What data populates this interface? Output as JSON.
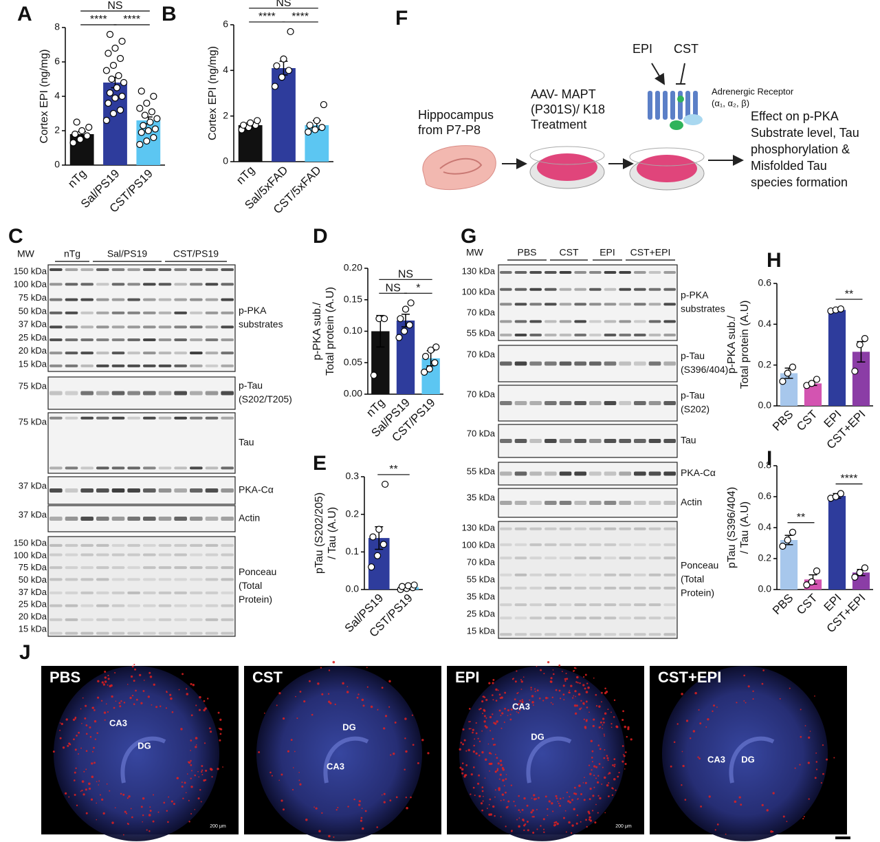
{
  "panel_letters": [
    "A",
    "B",
    "C",
    "D",
    "E",
    "F",
    "G",
    "H",
    "I",
    "J"
  ],
  "chart_data": [
    {
      "type": "bar",
      "ylabel": [
        "Cortex EPI (ng/mg)"
      ],
      "categories": [
        "nTg",
        "Sal/PS19",
        "CST/PS19"
      ],
      "values": [
        1.8,
        4.8,
        2.6
      ],
      "errors": [
        0.15,
        0.3,
        0.2
      ],
      "colors": [
        "#111111",
        "#2e3c9c",
        "#5cc6f2"
      ],
      "points": [
        [
          1.3,
          1.5,
          1.7,
          1.8,
          2.0,
          2.2,
          2.5
        ],
        [
          2.6,
          3.0,
          3.2,
          3.6,
          3.9,
          4.0,
          4.2,
          4.5,
          4.8,
          5.0,
          5.2,
          5.5,
          5.8,
          6.2,
          6.5,
          6.8,
          7.2,
          7.6
        ],
        [
          1.2,
          1.4,
          1.6,
          1.9,
          2.0,
          2.1,
          2.3,
          2.5,
          2.7,
          2.9,
          3.1,
          3.3,
          3.6,
          4.0,
          4.3
        ]
      ],
      "ylim": [
        0,
        8
      ],
      "yticks": [
        0,
        2,
        4,
        6,
        8
      ],
      "significance": [
        {
          "label": "NS",
          "from": 0,
          "to": 2
        },
        {
          "label": "****",
          "from": 0,
          "to": 1
        },
        {
          "label": "****",
          "from": 1,
          "to": 2
        }
      ]
    },
    {
      "type": "bar",
      "ylabel": [
        "Cortex EPI (ng/mg)"
      ],
      "categories": [
        "nTg",
        "Sal/5xFAD",
        "CST/5xFAD"
      ],
      "values": [
        1.6,
        4.1,
        1.6
      ],
      "errors": [
        0.1,
        0.3,
        0.2
      ],
      "colors": [
        "#111111",
        "#2e3c9c",
        "#5cc6f2"
      ],
      "points": [
        [
          1.4,
          1.5,
          1.6,
          1.6,
          1.7,
          1.8
        ],
        [
          3.3,
          3.7,
          4.0,
          4.2,
          4.5,
          5.7
        ],
        [
          1.3,
          1.4,
          1.5,
          1.6,
          1.8,
          2.5
        ]
      ],
      "ylim": [
        0,
        6
      ],
      "yticks": [
        0,
        2,
        4,
        6
      ],
      "significance": [
        {
          "label": "NS",
          "from": 0,
          "to": 2
        },
        {
          "label": "****",
          "from": 0,
          "to": 1
        },
        {
          "label": "****",
          "from": 1,
          "to": 2
        }
      ]
    },
    {
      "type": "bar",
      "ylabel": [
        "p-PKA sub./",
        "Total protein (A.U)"
      ],
      "categories": [
        "nTg",
        "Sal/PS19",
        "CST/PS19"
      ],
      "values": [
        0.1,
        0.117,
        0.057
      ],
      "errors": [
        0.025,
        0.01,
        0.012
      ],
      "colors": [
        "#111111",
        "#2e3c9c",
        "#5cc6f2"
      ],
      "points": [
        [
          0.03,
          0.12,
          0.12
        ],
        [
          0.09,
          0.1,
          0.11,
          0.12,
          0.135,
          0.145
        ],
        [
          0.035,
          0.04,
          0.05,
          0.06,
          0.07,
          0.075
        ]
      ],
      "ylim": [
        0,
        0.2
      ],
      "yticks": [
        {
          "value": 0,
          "label": "0.00"
        },
        0.05,
        {
          "value": 0.1,
          "label": "0.10"
        },
        0.15,
        {
          "value": 0.2,
          "label": "0.20"
        }
      ],
      "significance": [
        {
          "label": "NS",
          "from": 0,
          "to": 2
        },
        {
          "label": "NS",
          "from": 0,
          "to": 1
        },
        {
          "label": "*",
          "from": 1,
          "to": 2
        }
      ]
    },
    {
      "type": "bar",
      "ylabel": [
        "pTau (S202/205)",
        "/ Tau (A.U)"
      ],
      "categories": [
        "Sal/PS19",
        "CST/PS19"
      ],
      "values": [
        0.137,
        0.006
      ],
      "errors": [
        0.03,
        0.002
      ],
      "colors": [
        "#2e3c9c",
        "#5cc6f2"
      ],
      "points": [
        [
          0.06,
          0.09,
          0.12,
          0.14,
          0.16,
          0.28
        ],
        [
          0.0,
          0.003,
          0.005,
          0.008,
          0.01,
          0.012
        ]
      ],
      "ylim": [
        0,
        0.3
      ],
      "yticks": [
        {
          "value": 0,
          "label": "0.0"
        },
        0.1,
        0.2,
        0.3
      ],
      "significance": [
        {
          "label": "**",
          "from": 0,
          "to": 1
        }
      ]
    },
    {
      "type": "bar",
      "ylabel": [
        "p-PKA sub./",
        "Total protein (A.U)"
      ],
      "categories": [
        "PBS",
        "CST",
        "EPI",
        "CST+EPI"
      ],
      "values": [
        0.16,
        0.11,
        0.47,
        0.265
      ],
      "errors": [
        0.025,
        0.01,
        0.005,
        0.05
      ],
      "colors": [
        "#a7c7ec",
        "#d354b1",
        "#2e3c9c",
        "#8b3da6"
      ],
      "points": [
        [
          0.12,
          0.16,
          0.19
        ],
        [
          0.1,
          0.11,
          0.13
        ],
        [
          0.465,
          0.47,
          0.475
        ],
        [
          0.17,
          0.3,
          0.33
        ]
      ],
      "ylim": [
        0,
        0.6
      ],
      "yticks": [
        {
          "value": 0,
          "label": "0.0"
        },
        0.2,
        0.4,
        0.6
      ],
      "significance": [
        {
          "label": "**",
          "from": 2,
          "to": 3
        }
      ]
    },
    {
      "type": "bar",
      "ylabel": [
        "pTau (S396/404)",
        "/ Tau (A.U)"
      ],
      "categories": [
        "PBS",
        "CST",
        "EPI",
        "CST+EPI"
      ],
      "values": [
        0.32,
        0.065,
        0.605,
        0.11
      ],
      "errors": [
        0.03,
        0.03,
        0.015,
        0.02
      ],
      "colors": [
        "#a7c7ec",
        "#d354b1",
        "#2e3c9c",
        "#8b3da6"
      ],
      "points": [
        [
          0.28,
          0.32,
          0.37
        ],
        [
          0.03,
          0.05,
          0.12
        ],
        [
          0.59,
          0.6,
          0.62
        ],
        [
          0.08,
          0.11,
          0.14
        ]
      ],
      "ylim": [
        0,
        0.8
      ],
      "yticks": [
        {
          "value": 0,
          "label": "0.0"
        },
        0.2,
        0.4,
        0.6,
        0.8
      ],
      "significance": [
        {
          "label": "**",
          "from": 0,
          "to": 1
        },
        {
          "label": "****",
          "from": 2,
          "to": 3
        }
      ]
    }
  ],
  "blots": [
    {
      "mw_header": "MW",
      "groups": [
        "nTg",
        "Sal/PS19",
        "CST/PS19"
      ],
      "strips": [
        {
          "label": [
            "p-PKA",
            "substrates"
          ],
          "mw": [
            "150 kDa",
            "100 kDa",
            "75 kDa",
            "50 kDa",
            "37 kDa",
            "25 kDa",
            "20 kDa",
            "15 kDa"
          ]
        },
        {
          "label": [
            "p-Tau",
            "(S202/T205)"
          ],
          "mw": [
            "75 kDa"
          ]
        },
        {
          "label": [
            "Tau"
          ],
          "mw": [
            "75 kDa"
          ]
        },
        {
          "label": [
            "PKA-Cα"
          ],
          "mw": [
            "37 kDa"
          ]
        },
        {
          "label": [
            "Actin"
          ],
          "mw": [
            "37 kDa"
          ]
        },
        {
          "label": [
            "Ponceau",
            "(Total",
            "Protein)"
          ],
          "mw": [
            "150 kDa",
            "100 kDa",
            "75 kDa",
            "50 kDa",
            "37 kDa",
            "25 kDa",
            "20 kDa",
            "15 kDa"
          ]
        }
      ]
    },
    {
      "mw_header": "MW",
      "groups": [
        "PBS",
        "CST",
        "EPI",
        "CST+EPI"
      ],
      "strips": [
        {
          "label": [
            "p-PKA",
            "substrates"
          ],
          "mw": [
            "130 kDa",
            "100 kDa",
            "70 kDa",
            "55 kDa"
          ]
        },
        {
          "label": [
            "p-Tau",
            "(S396/404)"
          ],
          "mw": [
            "70 kDa"
          ]
        },
        {
          "label": [
            "p-Tau",
            "(S202)"
          ],
          "mw": [
            "70 kDa"
          ]
        },
        {
          "label": [
            "Tau"
          ],
          "mw": [
            "70 kDa"
          ]
        },
        {
          "label": [
            "PKA-Cα"
          ],
          "mw": [
            "55 kDa"
          ]
        },
        {
          "label": [
            "Actin"
          ],
          "mw": [
            "35 kDa"
          ]
        },
        {
          "label": [
            "Ponceau",
            "(Total",
            "Protein)"
          ],
          "mw": [
            "130 kDa",
            "100 kDa",
            "70 kDa",
            "55 kDa",
            "35 kDa",
            "25 kDa",
            "15 kDa"
          ]
        }
      ]
    }
  ],
  "diagram": {
    "source": [
      "Hippocampus",
      "from P7-P8"
    ],
    "treatment": [
      "AAV- MAPT",
      "(P301S)/ K18",
      "Treatment"
    ],
    "agonist": "EPI",
    "antagonist": "CST",
    "receptor": [
      "Adrenergic Receptor",
      "(α₁, α₂, β)"
    ],
    "outcome": [
      "Effect on p-PKA",
      "Substrate level, Tau",
      "phosphorylation &",
      "Misfolded Tau",
      "species formation"
    ]
  },
  "images": {
    "conditions": [
      "PBS",
      "CST",
      "EPI",
      "CST+EPI"
    ],
    "regions": [
      [
        "CA3",
        "DG"
      ],
      [
        "DG",
        "CA3"
      ],
      [
        "CA3",
        "DG"
      ],
      [
        "CA3",
        "DG"
      ]
    ],
    "scale_bar": "200 μm"
  }
}
